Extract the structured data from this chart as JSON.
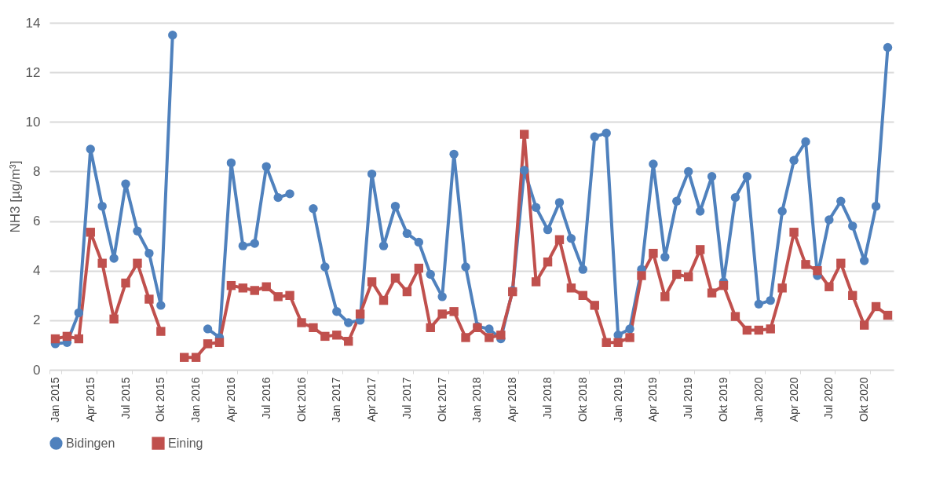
{
  "chart_data": {
    "type": "line",
    "ylabel": "NH3 [µg/m³]",
    "categories": [
      "Jan 2015",
      null,
      null,
      "Apr 2015",
      null,
      null,
      "Jul 2015",
      null,
      null,
      "Okt 2015",
      null,
      null,
      "Jan 2016",
      null,
      null,
      "Apr 2016",
      null,
      null,
      "Jul 2016",
      null,
      null,
      "Okt 2016",
      null,
      null,
      "Jan 2017",
      null,
      null,
      "Apr 2017",
      null,
      null,
      "Jul 2017",
      null,
      null,
      "Okt 2017",
      null,
      null,
      "Jan 2018",
      null,
      null,
      "Apr 2018",
      null,
      null,
      "Jul 2018",
      null,
      null,
      "Okt 2018",
      null,
      null,
      "Jan 2019",
      null,
      null,
      "Apr 2019",
      null,
      null,
      "Jul 2019",
      null,
      null,
      "Okt 2019",
      null,
      null,
      "Jan 2020",
      null,
      null,
      "Apr 2020",
      null,
      null,
      "Jul 2020",
      null,
      null,
      "Okt 2020",
      null,
      null
    ],
    "series": [
      {
        "name": "Bidingen",
        "color": "#4f81bd",
        "marker": "circle",
        "values": [
          1.05,
          1.1,
          2.3,
          8.9,
          6.6,
          4.5,
          7.5,
          5.6,
          4.7,
          2.6,
          13.5,
          null,
          null,
          1.65,
          1.3,
          8.35,
          5.0,
          5.1,
          8.2,
          6.95,
          7.1,
          null,
          6.5,
          4.15,
          2.35,
          1.9,
          2.0,
          7.9,
          5.0,
          6.6,
          5.5,
          5.15,
          3.85,
          2.95,
          8.7,
          4.15,
          1.75,
          1.65,
          1.25,
          3.2,
          8.05,
          6.55,
          5.65,
          6.75,
          5.3,
          4.05,
          9.4,
          9.55,
          1.4,
          1.65,
          4.05,
          8.3,
          4.55,
          6.8,
          8.0,
          6.4,
          7.8,
          3.55,
          6.95,
          7.8,
          2.65,
          2.8,
          6.4,
          8.45,
          9.2,
          3.8,
          6.05,
          6.8,
          5.8,
          4.4,
          6.6,
          13.0
        ]
      },
      {
        "name": "Eining",
        "color": "#c0504d",
        "marker": "square",
        "values": [
          1.25,
          1.35,
          1.25,
          5.55,
          4.3,
          2.05,
          3.5,
          4.3,
          2.85,
          1.55,
          null,
          0.5,
          0.5,
          1.05,
          1.1,
          3.4,
          3.3,
          3.2,
          3.35,
          2.95,
          3.0,
          1.9,
          1.7,
          1.35,
          1.4,
          1.15,
          2.25,
          3.55,
          2.8,
          3.7,
          3.15,
          4.1,
          1.7,
          2.25,
          2.35,
          1.3,
          1.7,
          1.3,
          1.4,
          3.15,
          9.5,
          3.55,
          4.35,
          5.25,
          3.3,
          3.0,
          2.6,
          1.1,
          1.1,
          1.3,
          3.8,
          4.7,
          2.95,
          3.85,
          3.75,
          4.85,
          3.1,
          3.4,
          2.15,
          1.6,
          1.6,
          1.65,
          3.3,
          5.55,
          4.25,
          4.0,
          3.35,
          4.3,
          3.0,
          1.8,
          2.55,
          2.2
        ]
      }
    ],
    "ylim": [
      0,
      14
    ],
    "yticks": [
      0,
      2,
      4,
      6,
      8,
      10,
      12,
      14
    ],
    "grid": "y",
    "legend": "bottom",
    "line_style": "solid"
  }
}
